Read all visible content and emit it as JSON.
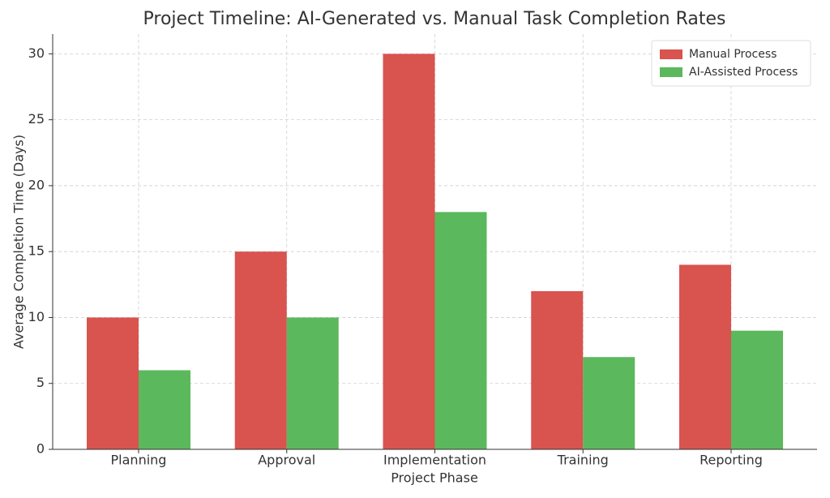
{
  "chart_data": {
    "type": "bar",
    "title": "Project Timeline: AI-Generated vs. Manual Task Completion Rates",
    "xlabel": "Project Phase",
    "ylabel": "Average Completion Time (Days)",
    "categories": [
      "Planning",
      "Approval",
      "Implementation",
      "Training",
      "Reporting"
    ],
    "series": [
      {
        "name": "Manual Process",
        "color": "#d9534f",
        "values": [
          10,
          15,
          30,
          12,
          14
        ]
      },
      {
        "name": "AI-Assisted Process",
        "color": "#5cb85c",
        "values": [
          6,
          10,
          18,
          7,
          9
        ]
      }
    ],
    "ylim": [
      0,
      31.5
    ],
    "yticks": [
      0,
      5,
      10,
      15,
      20,
      25,
      30
    ],
    "grid": true,
    "legend": "upper right"
  }
}
